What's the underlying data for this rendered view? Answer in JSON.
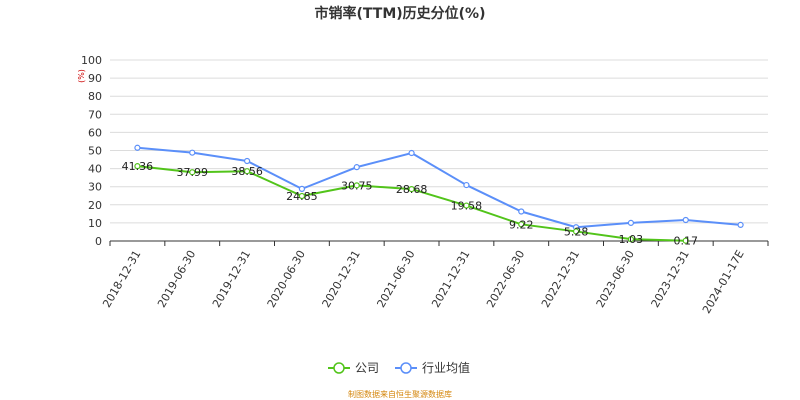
{
  "chart_data": {
    "type": "line",
    "title": "市销率(TTM)历史分位(%)",
    "y_unit": "(%)",
    "ylim": [
      0,
      100
    ],
    "y_ticks": [
      "0",
      "10",
      "20",
      "30",
      "40",
      "50",
      "60",
      "70",
      "80",
      "90",
      "100"
    ],
    "categories": [
      "2018-12-31",
      "2019-06-30",
      "2019-12-31",
      "2020-06-30",
      "2020-12-31",
      "2021-06-30",
      "2021-12-31",
      "2022-06-30",
      "2022-12-31",
      "2023-06-30",
      "2023-12-31",
      "2024-01-17E"
    ],
    "grid": true,
    "legend_position": "bottom",
    "series": [
      {
        "name": "公司",
        "color": "#52c41a",
        "values": [
          41.36,
          37.99,
          38.56,
          24.85,
          30.75,
          28.68,
          19.58,
          9.22,
          5.28,
          1.03,
          0.17,
          null
        ],
        "labels": [
          "41.36",
          "37.99",
          "38.56",
          "24.85",
          "30.75",
          "28.68",
          "19.58",
          "9.22",
          "5.28",
          "1.03",
          "0.17",
          ""
        ]
      },
      {
        "name": "行业均值",
        "color": "#5b8ff9",
        "values": [
          51.5,
          48.8,
          44.2,
          28.8,
          40.8,
          48.6,
          30.9,
          16.3,
          7.6,
          10.0,
          11.6,
          8.9
        ]
      }
    ]
  },
  "footer": {
    "source": "制图数据来自恒生聚源数据库"
  }
}
